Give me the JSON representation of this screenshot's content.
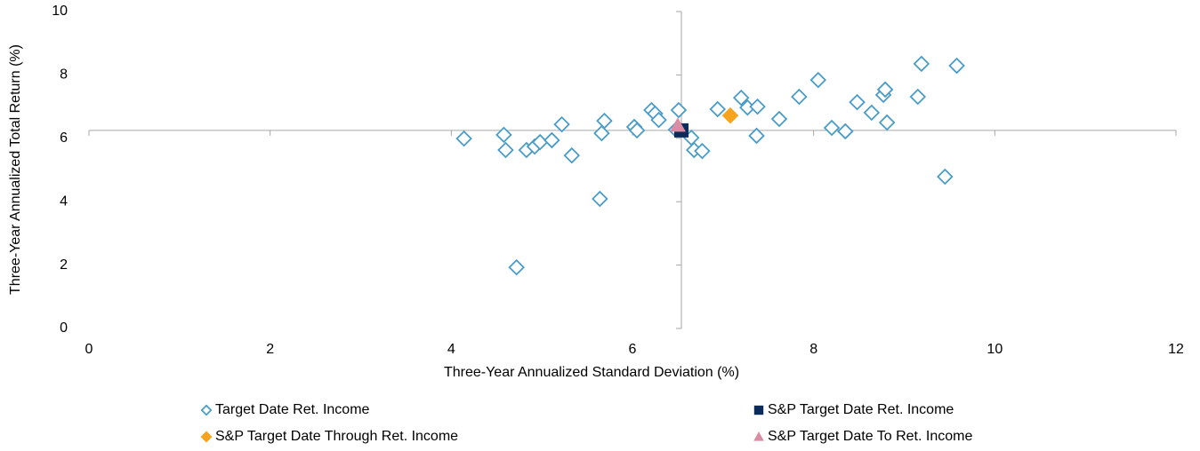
{
  "chart_data": {
    "type": "scatter",
    "xlabel": "Three-Year Annualized Standard Deviation (%)",
    "ylabel": "Three-Year Annualized Total Return (%)",
    "xlim": [
      0,
      12
    ],
    "xticks": [
      0,
      2,
      4,
      6,
      8,
      10,
      12
    ],
    "ylim": [
      0,
      10
    ],
    "yticks": [
      0,
      2,
      4,
      6,
      8,
      10
    ],
    "grid": false,
    "reference_lines": {
      "x": 6.54,
      "y": 6.25
    },
    "legend": "bottom",
    "series": [
      {
        "name": "Target Date Ret. Income",
        "color": "#4a9cc8",
        "marker": "diamond-open",
        "x": [
          4.14,
          4.58,
          4.6,
          4.72,
          4.83,
          4.92,
          4.98,
          5.11,
          5.22,
          5.33,
          5.64,
          5.66,
          5.69,
          6.02,
          6.05,
          6.21,
          6.25,
          6.29,
          6.51,
          6.48,
          6.65,
          6.68,
          6.77,
          6.94,
          7.2,
          7.27,
          7.38,
          7.37,
          7.62,
          7.84,
          8.05,
          8.2,
          8.35,
          8.48,
          8.64,
          8.77,
          8.79,
          8.81,
          9.15,
          9.19,
          9.45,
          9.58
        ],
        "values": [
          5.99,
          6.11,
          5.63,
          1.93,
          5.63,
          5.74,
          5.88,
          5.94,
          6.44,
          5.46,
          4.09,
          6.16,
          6.55,
          6.36,
          6.25,
          6.89,
          6.78,
          6.58,
          6.89,
          6.27,
          6.02,
          5.63,
          5.6,
          6.92,
          7.28,
          6.97,
          7.0,
          6.08,
          6.61,
          7.31,
          7.84,
          6.33,
          6.22,
          7.14,
          6.81,
          7.37,
          7.54,
          6.5,
          7.31,
          8.35,
          4.79,
          8.29
        ]
      },
      {
        "name": "S&P Target Date Ret. Income",
        "color": "#0b2c5a",
        "marker": "square",
        "x": [
          6.54
        ],
        "values": [
          6.25
        ]
      },
      {
        "name": "S&P Target Date Through Ret. Income",
        "color": "#f6a31d",
        "marker": "diamond",
        "x": [
          7.08
        ],
        "values": [
          6.72
        ]
      },
      {
        "name": "S&P Target Date To Ret. Income",
        "color": "#d98ca3",
        "marker": "triangle",
        "x": [
          6.5
        ],
        "values": [
          6.41
        ]
      }
    ]
  }
}
